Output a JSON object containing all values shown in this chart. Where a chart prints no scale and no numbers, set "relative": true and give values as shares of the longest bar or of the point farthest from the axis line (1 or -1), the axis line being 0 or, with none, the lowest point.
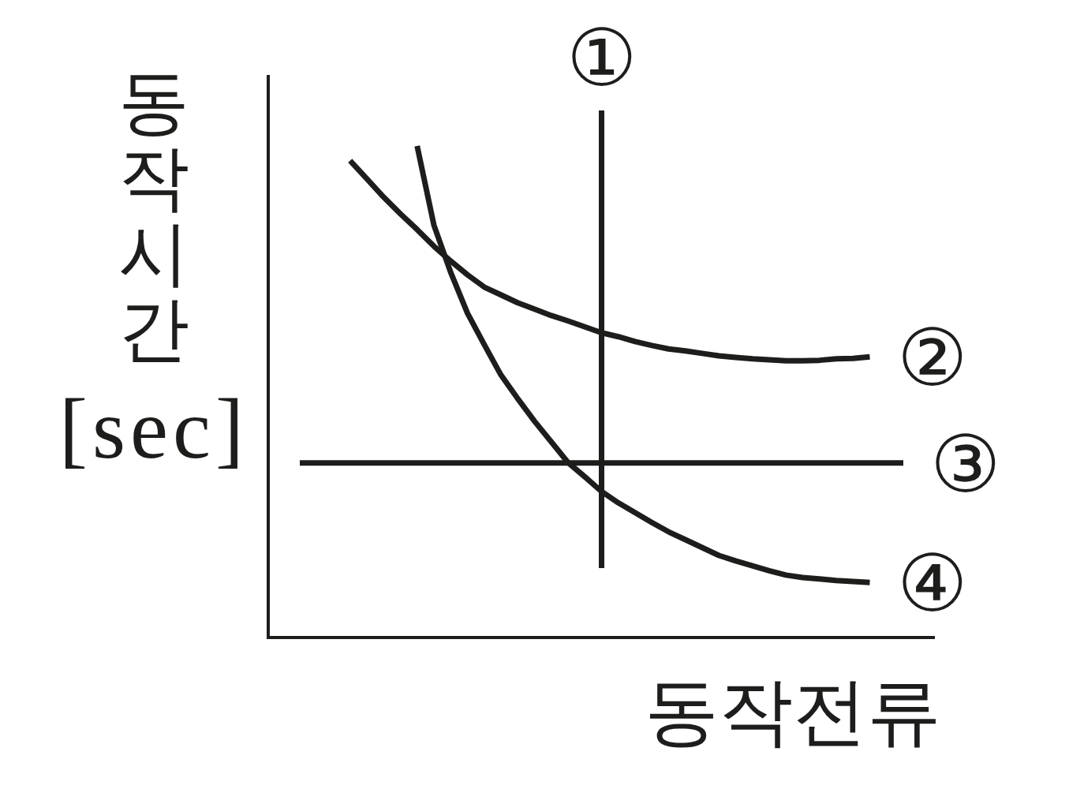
{
  "chart_data": {
    "type": "line",
    "xlabel": "동작전류",
    "ylabel": "동작시간 [sec]",
    "relative": true,
    "categories": [
      null,
      null,
      null,
      null,
      null,
      null,
      null,
      null,
      null,
      null,
      null,
      null,
      null,
      null,
      null,
      null,
      null,
      null,
      null,
      null,
      null,
      null,
      null,
      null,
      null,
      null,
      null,
      null,
      null,
      null,
      null,
      null,
      null,
      null,
      null,
      null,
      null
    ],
    "series": [
      {
        "name": "②",
        "color": "#1d1d1b",
        "values": [
          null,
          null,
          null,
          0.97,
          0.933,
          0.896,
          0.862,
          0.83,
          0.796,
          0.766,
          0.738,
          0.713,
          0.697,
          0.681,
          0.668,
          0.655,
          0.644,
          0.632,
          0.62,
          0.612,
          0.602,
          0.594,
          0.587,
          0.583,
          0.578,
          0.573,
          0.57,
          0.567,
          0.565,
          0.563,
          0.563,
          0.564,
          0.567,
          0.568,
          0.571,
          null,
          null
        ]
      },
      {
        "name": "③",
        "color": "#1d1d1b",
        "values": [
          0.355,
          0.355,
          0.355,
          0.355,
          0.355,
          0.355,
          0.355,
          0.355,
          0.355,
          0.355,
          0.355,
          0.355,
          0.355,
          0.355,
          0.355,
          0.355,
          0.355,
          0.355,
          0.355,
          0.355,
          0.355,
          0.355,
          0.355,
          0.355,
          0.355,
          0.355,
          0.355,
          0.355,
          0.355,
          0.355,
          0.355,
          0.355,
          0.355,
          0.355,
          0.355,
          0.355,
          0.355
        ]
      },
      {
        "name": "④",
        "color": "#1d1d1b",
        "values": [
          null,
          null,
          null,
          null,
          null,
          null,
          null,
          1.0,
          0.839,
          0.743,
          0.66,
          0.596,
          0.534,
          0.486,
          0.44,
          0.398,
          0.356,
          0.327,
          0.297,
          0.274,
          0.254,
          0.234,
          0.215,
          0.199,
          0.183,
          0.167,
          0.156,
          0.146,
          0.136,
          0.127,
          0.122,
          0.119,
          0.116,
          0.114,
          0.112,
          null,
          null
        ]
      }
    ],
    "annotations": [
      "①"
    ]
  }
}
